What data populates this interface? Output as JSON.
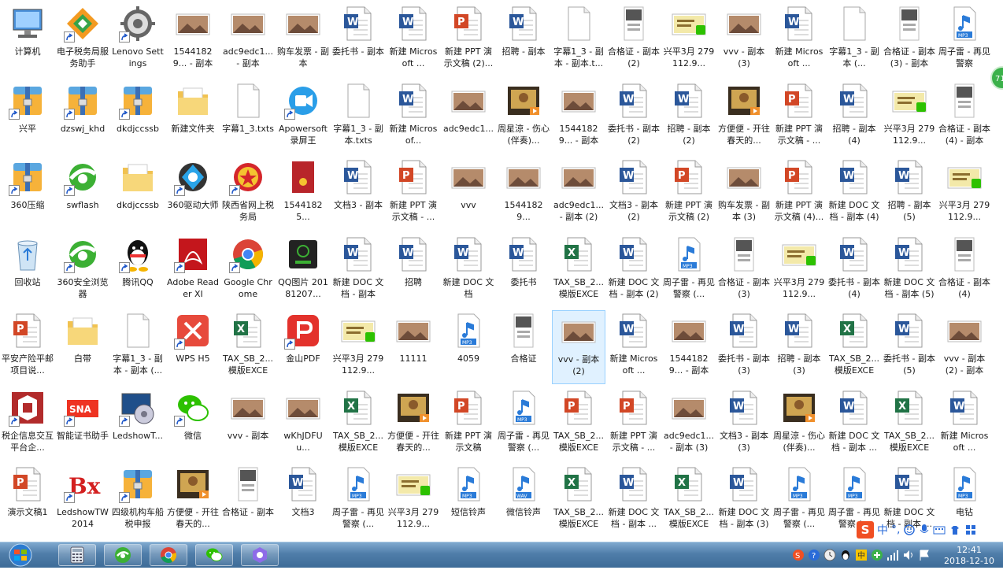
{
  "desktop": {
    "columns": [
      [
        "计算机",
        "兴平",
        "360压缩",
        "回收站",
        "平安产险平邮项目说...",
        "税企信息交互平台企...",
        "演示文稿1"
      ],
      [
        "电子税务局服务助手",
        "dzswj_khd",
        "swflash",
        "360安全浏览器",
        "白带",
        "智能证书助手",
        "LedshowTW 2014"
      ],
      [
        "Lenovo Settings",
        "dkdjccssb",
        "dkdjccssb",
        "腾讯QQ",
        "字幕1_3 - 副本 - 副本 (...",
        "LedshowT...",
        "四级机构车船税申报"
      ],
      [
        "15441829... - 副本",
        "新建文件夹",
        "360驱动大师",
        "Adobe Reader XI",
        "WPS H5",
        "微信",
        "方便便 - 开往春天的..."
      ],
      [
        "adc9edc1... - 副本",
        "字幕1_3.txts",
        "陕西省网上税务局",
        "Google Chrome",
        "TAX_SB_2...模版EXCEL...",
        "vvv - 副本",
        "合格证 - 副本"
      ],
      [
        "购车发票 - 副本",
        "Apowersoft 录屏王",
        "15441825...",
        "QQ图片 20181207...",
        "金山PDF",
        "wKhJDFUu...",
        "文档3"
      ],
      [
        "委托书 - 副本",
        "字幕1_3 - 副本.txts",
        "文档3 - 副本",
        "新建 DOC 文档 - 副本",
        "兴平3月 279112.9...",
        "TAX_SB_2...模版EXCEL...",
        "周子雷 - 再见警察 (..."
      ],
      [
        "新建 Microsoft ...",
        "新建 Microsof...",
        "新建 PPT 演示文稿 - ...",
        "招聘",
        "11111",
        "方便便 - 开往春天的...",
        "兴平3月 279112.9..."
      ],
      [
        "新建 PPT 演示文稿 (2)...",
        "adc9edc1...",
        "vvv",
        "新建 DOC 文档",
        "4059",
        "新建 PPT 演示文稿",
        "短信铃声"
      ],
      [
        "招聘 - 副本",
        "周星涼 - 伤心 (伴奏)...",
        "15441829...",
        "委托书",
        "合格证",
        "周子雷 - 再见警察 (...",
        "微信铃声"
      ],
      [
        "字幕1_3 - 副本 - 副本.t...",
        "15441829... - 副本",
        "adc9edc1... - 副本 (2)",
        "TAX_SB_2...模版EXCEL...",
        "vvv - 副本 (2)",
        "TAX_SB_2...模版EXCEL...",
        "TAX_SB_2...模版EXCEL..."
      ],
      [
        "合格证 - 副本 (2)",
        "委托书 - 副本 (2)",
        "文档3 - 副本 (2)",
        "新建 DOC 文档 - 副本 (2)",
        "新建 Microsoft ...",
        "新建 PPT 演示文稿 - ...",
        "新建 DOC 文档 - 副本 ..."
      ],
      [
        "兴平3月 279112.9...",
        "招聘 - 副本 (2)",
        "新建 PPT 演示文稿 (2)",
        "周子雷 - 再见警察 (...",
        "15441829... - 副本",
        "adc9edc1... - 副本 (3)",
        "TAX_SB_2...模版EXCEL..."
      ],
      [
        "vvv - 副本 (3)",
        "方便便 - 开往春天的...",
        "购车发票 - 副本 (3)",
        "合格证 - 副本 (3)",
        "委托书 - 副本 (3)",
        "文档3 - 副本 (3)",
        "新建 DOC 文档 - 副本 (3)"
      ],
      [
        "新建 Microsoft ...",
        "新建 PPT 演示文稿 - ...",
        "新建 PPT 演示文稿 (4)...",
        "兴平3月 279112.9...",
        "招聘 - 副本 (3)",
        "周星涼 - 伤心 (伴奏)...",
        "周子雷 - 再见警察 (..."
      ],
      [
        "字幕1_3 - 副本 (...",
        "招聘 - 副本 (4)",
        "新建 DOC 文档 - 副本 (4)",
        "委托书 - 副本 (4)",
        "TAX_SB_2...模版EXCEL...",
        "新建 DOC 文档 - 副本 ...",
        "周子雷 - 再见警察 (..."
      ],
      [
        "合格证 - 副本 (3) - 副本",
        "兴平3月 279112.9...",
        "招聘 - 副本 (5)",
        "新建 DOC 文档 - 副本 (5)",
        "委托书 - 副本 (5)",
        "TAX_SB_2...模版EXCEL...",
        "新建 DOC 文档 - 副本 ..."
      ],
      [
        "周子雷 - 再见警察",
        "合格证 - 副本 (4) - 副本",
        "兴平3月 279112.9...",
        "合格证 - 副本 (4)",
        "vvv - 副本 (2) - 副本",
        "新建 Microsoft ...",
        "电钻"
      ]
    ],
    "types": [
      [
        "computer",
        "zip",
        "zip",
        "recycle",
        "ppt",
        "logo-red",
        "ppt"
      ],
      [
        "taxapp",
        "zip",
        "ie",
        "qq-ie",
        "folder",
        "sna",
        "bx"
      ],
      [
        "gear",
        "zip",
        "folder",
        "qq",
        "txt",
        "monitor",
        "zip"
      ],
      [
        "photo",
        "folder",
        "gear-blue",
        "pdf",
        "wps",
        "wechat",
        "video"
      ],
      [
        "photo",
        "txt",
        "emblem",
        "chrome",
        "xls",
        "photo",
        "cert"
      ],
      [
        "photo",
        "recorder",
        "redcard",
        "qrphone",
        "kpdf",
        "photo",
        "word"
      ],
      [
        "word",
        "txt",
        "word",
        "word",
        "photoqq",
        "xls",
        "mp3"
      ],
      [
        "word",
        "word",
        "ppt",
        "word",
        "photo",
        "video",
        "photoqq"
      ],
      [
        "ppt",
        "photo",
        "photo",
        "word",
        "mp3",
        "ppt",
        "mp3"
      ],
      [
        "word",
        "video",
        "photo",
        "word",
        "cert",
        "mp3",
        "wav"
      ],
      [
        "txt",
        "photo",
        "photo",
        "xls",
        "photo",
        "ppt",
        "xls"
      ],
      [
        "cert",
        "word",
        "word",
        "word",
        "word",
        "ppt",
        "word"
      ],
      [
        "photoqq",
        "word",
        "ppt",
        "mp3",
        "photo",
        "photo",
        "xls"
      ],
      [
        "photo",
        "video",
        "photo",
        "cert",
        "word",
        "word",
        "word"
      ],
      [
        "word",
        "ppt",
        "ppt",
        "photoqq",
        "word",
        "video",
        "mp3"
      ],
      [
        "txt",
        "word",
        "word",
        "word",
        "xls",
        "word",
        "mp3"
      ],
      [
        "cert",
        "photoqq",
        "word",
        "word",
        "word",
        "xls",
        "word"
      ],
      [
        "mp3",
        "cert",
        "photoqq",
        "cert",
        "photo",
        "word",
        "mp3"
      ]
    ],
    "selected": {
      "col": 10,
      "row": 4
    }
  },
  "ime": {
    "logo": "S",
    "lang": "中",
    "punct": "°,"
  },
  "taskbar": {
    "pinned": [
      "calculator-icon",
      "360-browser-icon",
      "chrome-icon",
      "wechat-icon",
      "photos-icon"
    ]
  },
  "clock": {
    "time": "12:41",
    "date": "2018-12-10"
  },
  "badge": {
    "text": "71"
  },
  "colors": {
    "word": "#2b579a",
    "excel": "#217346",
    "ppt": "#d24726",
    "taskbar": "#4f7da9"
  }
}
